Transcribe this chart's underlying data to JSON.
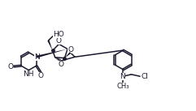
{
  "background_color": "#ffffff",
  "line_color": "#1a1a2e",
  "line_width": 1.1,
  "font_size": 6.5,
  "fig_width": 2.41,
  "fig_height": 1.37,
  "dpi": 100,
  "xlim": [
    0,
    10
  ],
  "ylim": [
    0,
    5.7
  ]
}
